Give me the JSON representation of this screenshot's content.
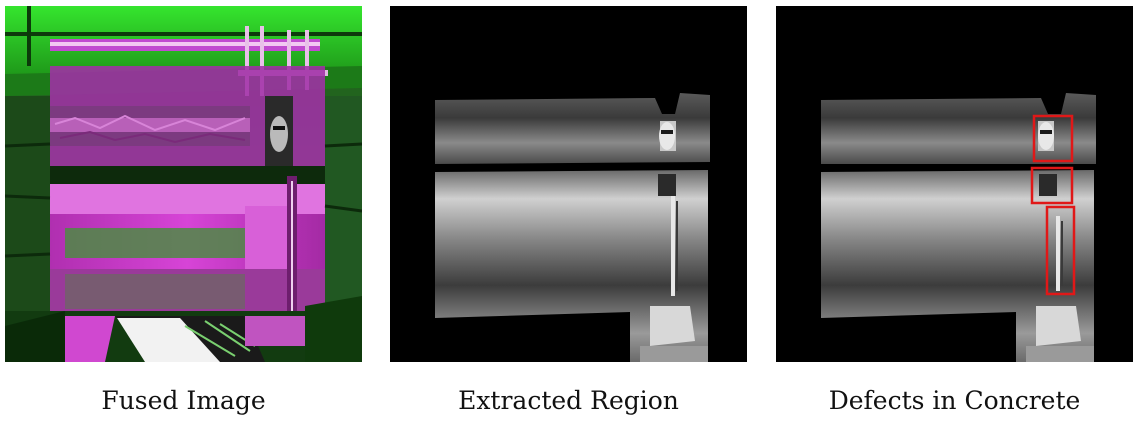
{
  "panels": [
    {
      "caption": "Fused Image"
    },
    {
      "caption": "Extracted Region"
    },
    {
      "caption": "Defects in Concrete"
    }
  ],
  "colors": {
    "background": "#ffffff",
    "fused_green": "#22c41c",
    "fused_magenta": "#d231d2",
    "defect_box": "#e01818",
    "panel_black": "#000000"
  },
  "defect_boxes_count": 3
}
